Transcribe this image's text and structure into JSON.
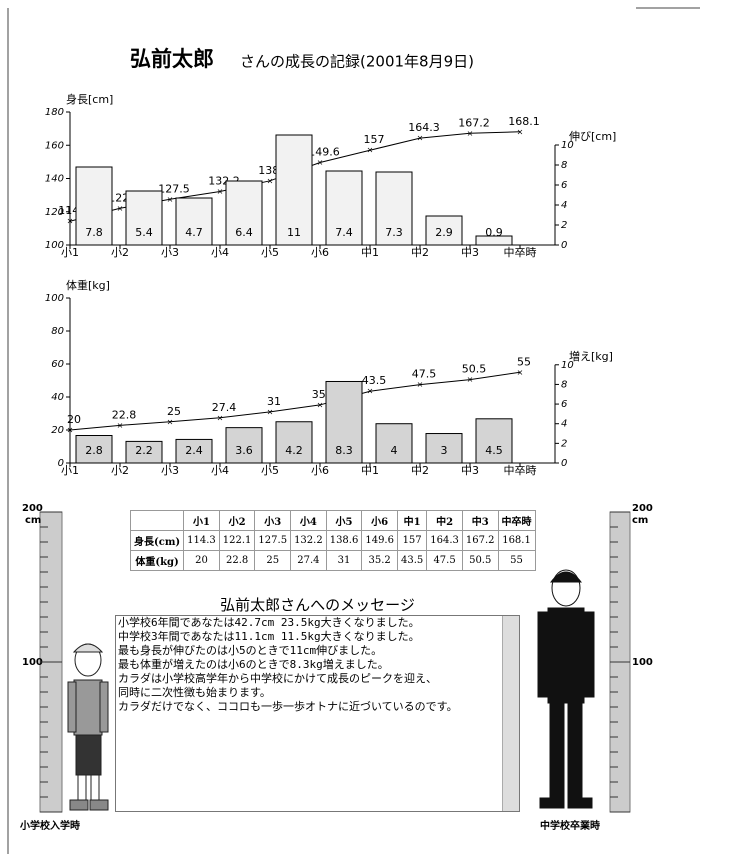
{
  "header": {
    "name": "弘前太郎",
    "rest": "さんの成長の記録(2001年8月9日)"
  },
  "chart_data": [
    {
      "type": "bar-line",
      "ylabel": "身長[cm]",
      "y2label": "伸び[cm]",
      "categories": [
        "小1",
        "小2",
        "小3",
        "小4",
        "小5",
        "小6",
        "中1",
        "中2",
        "中3",
        "中卒時"
      ],
      "ylim": [
        100,
        180
      ],
      "yticks": [
        100,
        120,
        140,
        160,
        180
      ],
      "y2lim": [
        0,
        13.3
      ],
      "y2ticks": [
        0,
        2,
        4,
        6,
        8,
        10
      ],
      "series": [
        {
          "type": "line",
          "axis": "y",
          "color": "#000000",
          "values": [
            114.3,
            122.1,
            127.5,
            132.2,
            138.6,
            149.6,
            157,
            164.3,
            167.2,
            168.1
          ]
        },
        {
          "type": "bar",
          "axis": "y2",
          "color": "#f2f2f2",
          "values": [
            7.8,
            5.4,
            4.7,
            6.4,
            11,
            7.4,
            7.3,
            2.9,
            0.9,
            null
          ]
        }
      ]
    },
    {
      "type": "bar-line",
      "ylabel": "体重[kg]",
      "y2label": "増え[kg]",
      "categories": [
        "小1",
        "小2",
        "小3",
        "小4",
        "小5",
        "小6",
        "中1",
        "中2",
        "中3",
        "中卒時"
      ],
      "ylim": [
        0,
        100
      ],
      "yticks": [
        0,
        20,
        40,
        60,
        80,
        100
      ],
      "y2lim": [
        0,
        16.8
      ],
      "y2ticks": [
        0,
        2,
        4,
        6,
        8,
        10
      ],
      "series": [
        {
          "type": "line",
          "axis": "y",
          "color": "#000000",
          "values": [
            20,
            22.8,
            25,
            27.4,
            31,
            35.2,
            43.5,
            47.5,
            50.5,
            55
          ]
        },
        {
          "type": "bar",
          "axis": "y2",
          "color": "#d4d4d4",
          "values": [
            2.8,
            2.2,
            2.4,
            3.6,
            4.2,
            8.3,
            4,
            3,
            4.5,
            null
          ]
        }
      ]
    }
  ],
  "table": {
    "header": [
      "小1",
      "小2",
      "小3",
      "小4",
      "小5",
      "小6",
      "中1",
      "中2",
      "中3",
      "中卒時"
    ],
    "rows": [
      {
        "label": "身長(cm)",
        "values": [
          114.3,
          122.1,
          127.5,
          132.2,
          138.6,
          149.6,
          157,
          164.3,
          167.2,
          168.1
        ]
      },
      {
        "label": "体重(kg)",
        "values": [
          20,
          22.8,
          25,
          27.4,
          31,
          35.2,
          43.5,
          47.5,
          50.5,
          55
        ]
      }
    ]
  },
  "message": {
    "title": "弘前太郎さんへのメッセージ",
    "lines": [
      "小学校6年間であなたは42.7cm 23.5kg大きくなりました。",
      "中学校3年間であなたは11.1cm 11.5kg大きくなりました。",
      "最も身長が伸びたのは小5のときで11cm伸びました。",
      "最も体重が増えたのは小6のときで8.3kg増えました。",
      "カラダは小学校高学年から中学校にかけて成長のピークを迎え、",
      "同時に二次性徴も始まります。",
      "カラダだけでなく、ココロも一歩一歩オトナに近づいているのです。"
    ]
  },
  "rulers": {
    "top": "200",
    "unit": "cm",
    "middle": "100",
    "left_caption": "小学校入学時",
    "right_caption": "中学校卒業時"
  }
}
